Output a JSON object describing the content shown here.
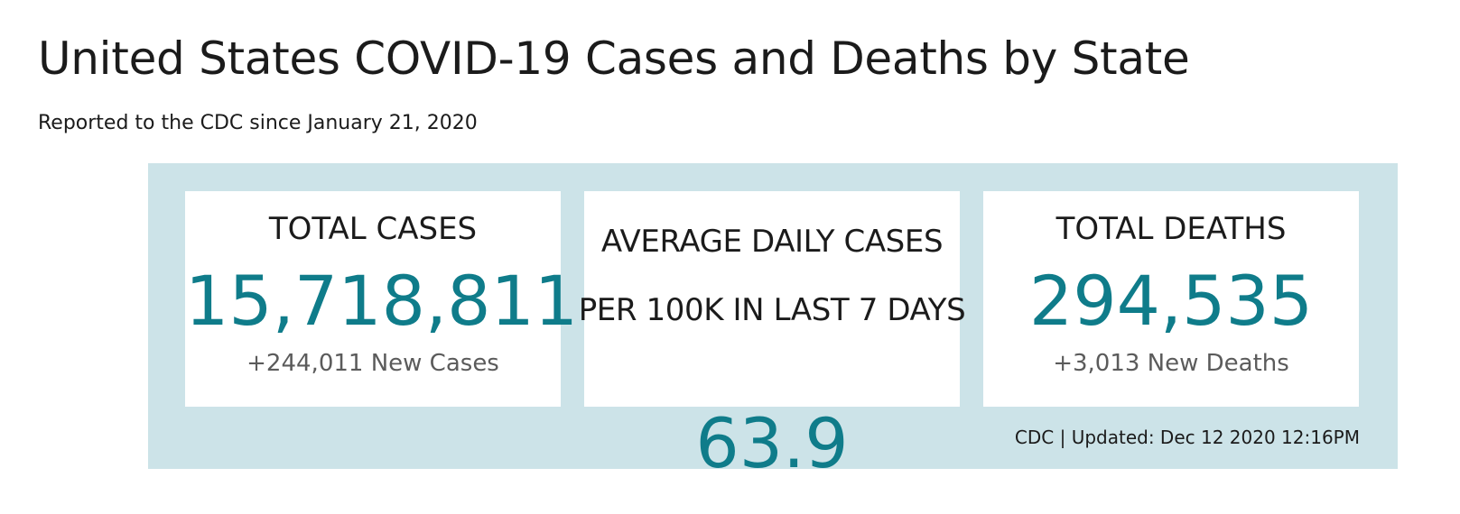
{
  "header": {
    "title": "United States COVID-19 Cases and Deaths by State",
    "subtitle": "Reported to the CDC since January 21, 2020"
  },
  "stats": {
    "total_cases": {
      "label": "TOTAL CASES",
      "value": "15,718,811",
      "sub": "+244,011 New Cases"
    },
    "avg_daily_cases": {
      "label": "AVERAGE DAILY CASES PER 100K IN LAST 7 DAYS",
      "value": "63.9"
    },
    "total_deaths": {
      "label": "TOTAL DEATHS",
      "value": "294,535",
      "sub": "+3,013 New Deaths"
    }
  },
  "footer": {
    "updated": "CDC | Updated: Dec 12 2020 12:16PM"
  },
  "colors": {
    "panel_bg": "#cce3e8",
    "accent": "#0f7c8a",
    "text": "#1b1b1b",
    "muted": "#5b5b5b"
  }
}
